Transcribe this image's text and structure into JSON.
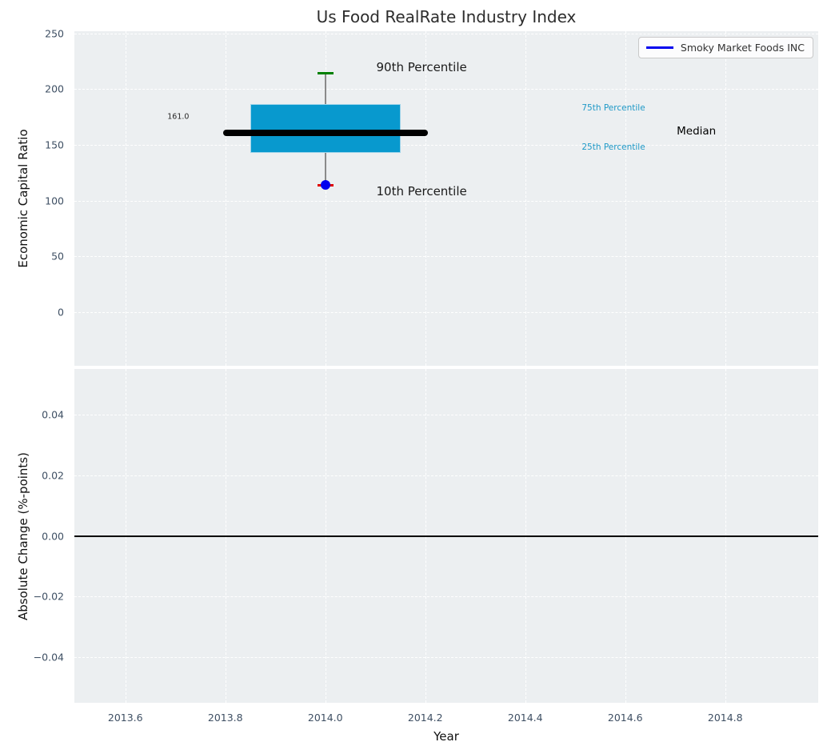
{
  "figure": {
    "title": "Us Food RealRate Industry Index",
    "xlabel": "Year",
    "legend": {
      "label": "Smoky Market Foods INC",
      "line_color": "#0000ee"
    },
    "colors": {
      "plot_bg": "#eceff1",
      "grid": "#ffffff",
      "tick_label": "#3e4f63",
      "box_fill": "#0899ce",
      "box_edge": "#9fd4ea",
      "median_line": "#000000",
      "whisker": "#8a8a8a",
      "p90_cap": "#008000",
      "p10_cap": "#dd0000",
      "company_point": "#0000ee",
      "zero_line": "#000000",
      "percentile_label": "#1f99c7",
      "annotation_dark": "#1a1a1a"
    }
  },
  "chart_data": [
    {
      "type": "box",
      "title": "Us Food RealRate Industry Index",
      "ylabel": "Economic Capital Ratio",
      "xlim": [
        2013.498,
        2014.986
      ],
      "ylim": [
        -48,
        252
      ],
      "grid": true,
      "xticks": [
        2013.6,
        2013.8,
        2014.0,
        2014.2,
        2014.4,
        2014.6,
        2014.8
      ],
      "yticks": [
        0,
        50,
        100,
        150,
        200,
        250
      ],
      "ytick_labels": [
        "0",
        "50",
        "100",
        "150",
        "200",
        "250"
      ],
      "box": {
        "x": 2014.0,
        "box_left": 2013.85,
        "box_right": 2014.15,
        "p10": 114,
        "q1": 143,
        "median": 161.0,
        "q3": 187,
        "p90": 214,
        "median_line_left": 2013.795,
        "median_line_right": 2014.205
      },
      "company_point": {
        "x": 2014.0,
        "y": 114,
        "series": "Smoky Market Foods INC"
      },
      "legend": {
        "label": "Smoky Market Foods INC",
        "position": "upper right"
      },
      "annotations": [
        {
          "id": "p90-label",
          "text": "90th Percentile",
          "x": 2014.102,
          "y": 220,
          "size": 15,
          "color": "#1a1a1a"
        },
        {
          "id": "p10-label",
          "text": "10th Percentile",
          "x": 2014.102,
          "y": 108.5,
          "size": 15,
          "color": "#1a1a1a"
        },
        {
          "id": "median-value",
          "text": "161.0",
          "x": 2013.684,
          "y": 175,
          "size": 9.5,
          "color": "#262626"
        },
        {
          "id": "q3-label",
          "text": "75th Percentile",
          "x": 2014.513,
          "y": 183,
          "size": 10.5,
          "color": "#1f99c7"
        },
        {
          "id": "q1-label",
          "text": "25th Percentile",
          "x": 2014.513,
          "y": 148,
          "size": 10.5,
          "color": "#1f99c7"
        },
        {
          "id": "median-label",
          "text": "Median",
          "x": 2014.703,
          "y": 162,
          "size": 13.5,
          "color": "#000000"
        }
      ]
    },
    {
      "type": "line",
      "ylabel": "Absolute Change (%-points)",
      "xlabel": "Year",
      "xlim": [
        2013.498,
        2014.986
      ],
      "ylim": [
        -0.0552,
        0.0552
      ],
      "grid": true,
      "xticks": [
        2013.6,
        2013.8,
        2014.0,
        2014.2,
        2014.4,
        2014.6,
        2014.8
      ],
      "xtick_labels": [
        "2013.6",
        "2013.8",
        "2014.0",
        "2014.2",
        "2014.4",
        "2014.6",
        "2014.8"
      ],
      "yticks": [
        0.04,
        0.02,
        0.0,
        -0.02,
        -0.04
      ],
      "ytick_labels": [
        "0.04",
        "0.02",
        "0.00",
        "−0.02",
        "−0.04"
      ],
      "zero_line": 0.0
    }
  ]
}
